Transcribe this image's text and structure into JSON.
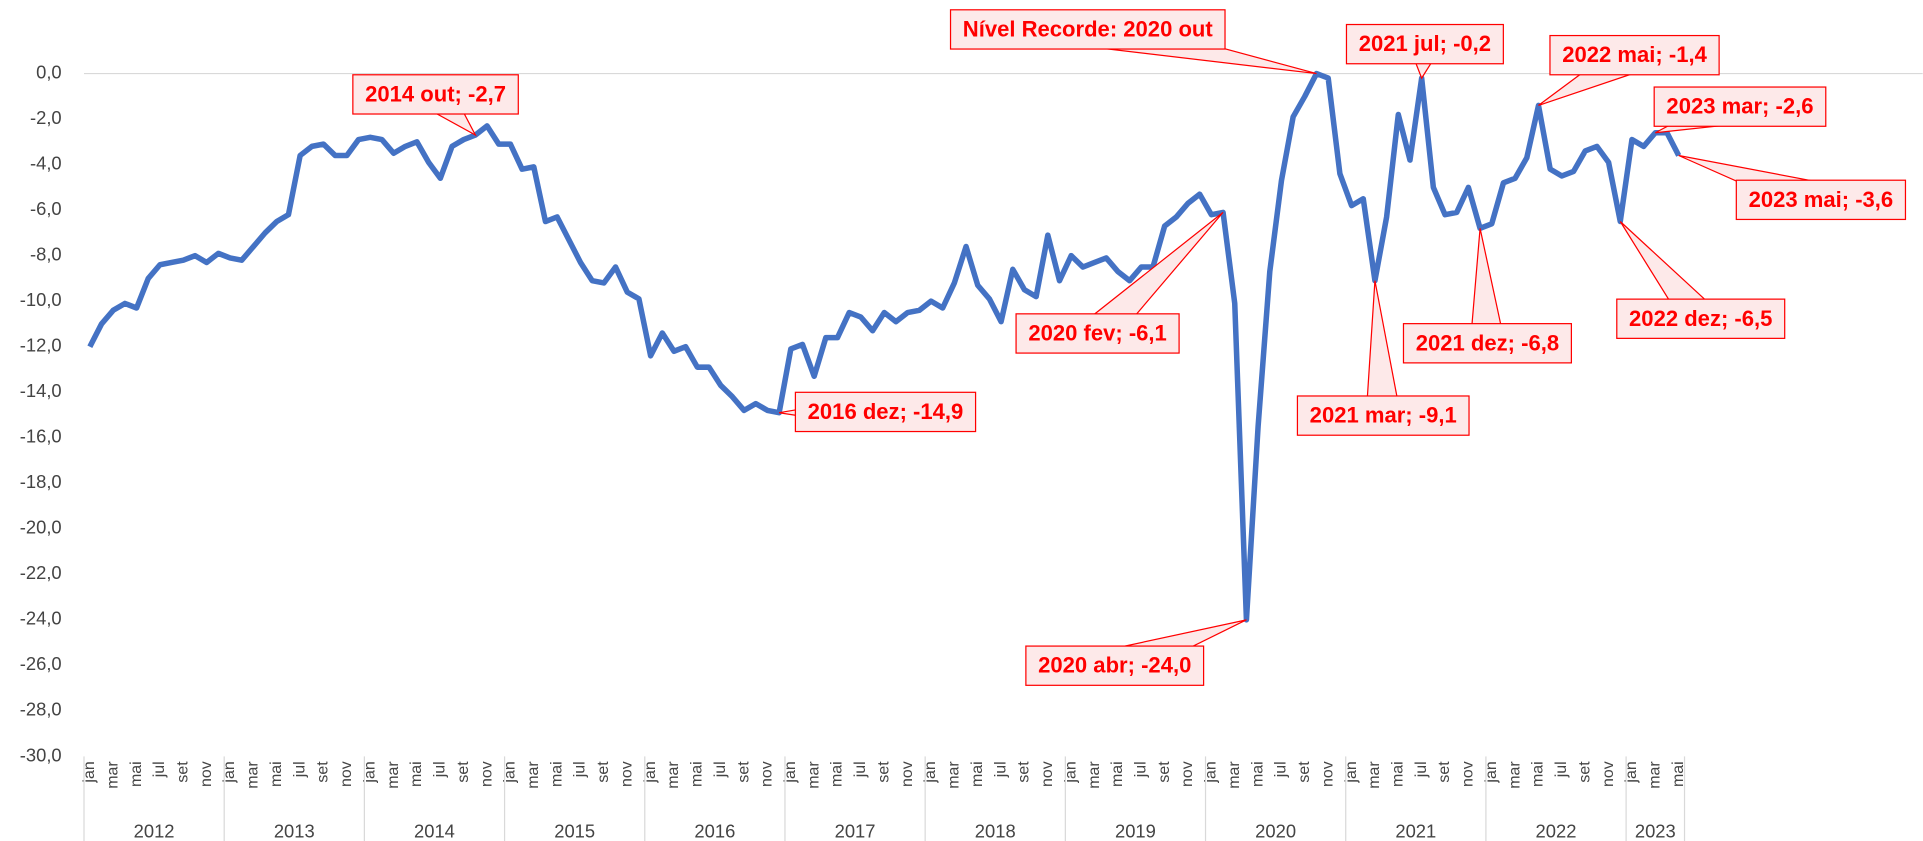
{
  "chart_data": {
    "type": "line",
    "color": "#4472c4",
    "ylim": [
      -30,
      0
    ],
    "yticks": [
      {
        "value": 0,
        "label": "0,0"
      },
      {
        "value": -2,
        "label": "-2,0"
      },
      {
        "value": -4,
        "label": "-4,0"
      },
      {
        "value": -6,
        "label": "-6,0"
      },
      {
        "value": -8,
        "label": "-8,0"
      },
      {
        "value": -10,
        "label": "-10,0"
      },
      {
        "value": -12,
        "label": "-12,0"
      },
      {
        "value": -14,
        "label": "-14,0"
      },
      {
        "value": -16,
        "label": "-16,0"
      },
      {
        "value": -18,
        "label": "-18,0"
      },
      {
        "value": -20,
        "label": "-20,0"
      },
      {
        "value": -22,
        "label": "-22,0"
      },
      {
        "value": -24,
        "label": "-24,0"
      },
      {
        "value": -26,
        "label": "-26,0"
      },
      {
        "value": -28,
        "label": "-28,0"
      },
      {
        "value": -30,
        "label": "-30,0"
      }
    ],
    "years": [
      "2012",
      "2013",
      "2014",
      "2015",
      "2016",
      "2017",
      "2018",
      "2019",
      "2020",
      "2021",
      "2022",
      "2023"
    ],
    "categories": [
      "jan",
      null,
      "mar",
      null,
      "mai",
      null,
      "jul",
      null,
      "set",
      null,
      "nov",
      null,
      "jan",
      null,
      "mar",
      null,
      "mai",
      null,
      "jul",
      null,
      "set",
      null,
      "nov",
      null,
      "jan",
      null,
      "mar",
      null,
      "mai",
      null,
      "jul",
      null,
      "set",
      null,
      "nov",
      null,
      "jan",
      null,
      "mar",
      null,
      "mai",
      null,
      "jul",
      null,
      "set",
      null,
      "nov",
      null,
      "jan",
      null,
      "mar",
      null,
      "mai",
      null,
      "jul",
      null,
      "set",
      null,
      "nov",
      null,
      "jan",
      null,
      "mar",
      null,
      "mai",
      null,
      "jul",
      null,
      "set",
      null,
      "nov",
      null,
      "jan",
      null,
      "mar",
      null,
      "mai",
      null,
      "jul",
      null,
      "set",
      null,
      "nov",
      null,
      "jan",
      null,
      "mar",
      null,
      "mai",
      null,
      "jul",
      null,
      "set",
      null,
      "nov",
      null,
      "jan",
      null,
      "mar",
      null,
      "mai",
      null,
      "jul",
      null,
      "set",
      null,
      "nov",
      null,
      "jan",
      null,
      "mar",
      null,
      "mai",
      null,
      "jul",
      null,
      "set",
      null,
      "nov",
      null,
      "jan",
      null,
      "mar",
      null,
      "mai",
      null,
      "jul",
      null,
      "set",
      null,
      "nov",
      null,
      "jan",
      null,
      "mar",
      null,
      "mai"
    ],
    "values": [
      -12.0,
      -11.0,
      -10.4,
      -10.1,
      -10.3,
      -9.0,
      -8.4,
      -8.3,
      -8.2,
      -8.0,
      -8.3,
      -7.9,
      -8.1,
      -8.2,
      -7.6,
      -7.0,
      -6.5,
      -6.2,
      -3.6,
      -3.2,
      -3.1,
      -3.6,
      -3.6,
      -2.9,
      -2.8,
      -2.9,
      -3.5,
      -3.2,
      -3.0,
      -3.9,
      -4.6,
      -3.2,
      -2.9,
      -2.7,
      -2.3,
      -3.1,
      -3.1,
      -4.2,
      -4.1,
      -6.5,
      -6.3,
      -7.3,
      -8.3,
      -9.1,
      -9.2,
      -8.5,
      -9.6,
      -9.9,
      -12.4,
      -11.4,
      -12.2,
      -12.0,
      -12.9,
      -12.9,
      -13.7,
      -14.2,
      -14.8,
      -14.5,
      -14.8,
      -14.9,
      -12.1,
      -11.9,
      -13.3,
      -11.6,
      -11.6,
      -10.5,
      -10.7,
      -11.3,
      -10.5,
      -10.9,
      -10.5,
      -10.4,
      -10.0,
      -10.3,
      -9.2,
      -7.6,
      -9.3,
      -9.9,
      -10.9,
      -8.6,
      -9.5,
      -9.8,
      -7.1,
      -9.1,
      -8.0,
      -8.5,
      -8.3,
      -8.1,
      -8.7,
      -9.1,
      -8.5,
      -8.5,
      -6.7,
      -6.3,
      -5.7,
      -5.3,
      -6.2,
      -6.1,
      -10.1,
      -24.0,
      -15.5,
      -8.7,
      -4.7,
      -1.9,
      -1.0,
      0.0,
      -0.2,
      -4.4,
      -5.8,
      -5.5,
      -9.1,
      -6.3,
      -1.8,
      -3.8,
      -0.2,
      -5.0,
      -6.2,
      -6.1,
      -5.0,
      -6.8,
      -6.6,
      -4.8,
      -4.6,
      -3.7,
      -1.4,
      -4.2,
      -4.5,
      -4.3,
      -3.4,
      -3.2,
      -3.9,
      -6.5,
      -2.9,
      -3.2,
      -2.6,
      -2.6,
      -3.6
    ],
    "annotations": [
      {
        "text": "2014 out; -2,7",
        "index": 33
      },
      {
        "text": "2016 dez; -14,9",
        "index": 59
      },
      {
        "text": "2020 fev; -6,1",
        "index": 97
      },
      {
        "text": "2020 abr; -24,0",
        "index": 99
      },
      {
        "text": "Nível Recorde: 2020 out",
        "index": 105
      },
      {
        "text": "2021 mar; -9,1",
        "index": 110
      },
      {
        "text": "2021 jul; -0,2",
        "index": 114
      },
      {
        "text": "2021 dez; -6,8",
        "index": 119
      },
      {
        "text": "2022 mai; -1,4",
        "index": 124
      },
      {
        "text": "2022 dez; -6,5",
        "index": 131
      },
      {
        "text": "2023 mar; -2,6",
        "index": 134
      },
      {
        "text": "2023 mai; -3,6",
        "index": 136
      }
    ]
  }
}
